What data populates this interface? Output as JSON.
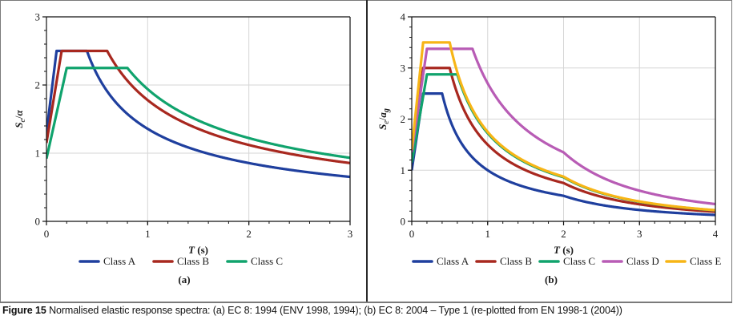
{
  "caption": {
    "label": "Figure 15",
    "text": "Normalised elastic response spectra: (a) EC 8: 1994 (ENV 1998, 1994); (b) EC 8: 2004 – Type 1 (re-plotted from EN 1998-1 (2004))"
  },
  "chart_data": [
    {
      "id": "a",
      "type": "line",
      "panel_label": "(a)",
      "title": "",
      "xlabel_italic": "T",
      "xlabel_rest": " (s)",
      "ylabel_main": "S",
      "ylabel_sub": "e",
      "ylabel_slash": "/",
      "ylabel_denom": "α",
      "ylabel_denom_sub": "",
      "xlim": [
        0,
        3
      ],
      "ylim": [
        0,
        3
      ],
      "xticks": [
        0,
        1,
        2,
        3
      ],
      "yticks": [
        0,
        1,
        2,
        3
      ],
      "x_minor_step": 0.2,
      "y_minor_step": 0.2,
      "grid": true,
      "legend_position": "bottom",
      "series": [
        {
          "name": "Class A",
          "color": "#1f3f9e",
          "spectrum": {
            "S0": 1.3,
            "TB": 0.1,
            "TC": 0.4,
            "plateau": 2.5,
            "exp": 0.6667
          }
        },
        {
          "name": "Class B",
          "color": "#a8281f",
          "spectrum": {
            "S0": 1.15,
            "TB": 0.15,
            "TC": 0.6,
            "plateau": 2.5,
            "exp": 0.6667
          }
        },
        {
          "name": "Class C",
          "color": "#10a36d",
          "spectrum": {
            "S0": 0.92,
            "TB": 0.2,
            "TC": 0.8,
            "plateau": 2.25,
            "exp": 0.6667
          }
        }
      ]
    },
    {
      "id": "b",
      "type": "line",
      "panel_label": "(b)",
      "title": "",
      "xlabel_italic": "T",
      "xlabel_rest": " (s)",
      "ylabel_main": "S",
      "ylabel_sub": "e",
      "ylabel_slash": "/",
      "ylabel_denom": "a",
      "ylabel_denom_sub": "g",
      "xlim": [
        0,
        4
      ],
      "ylim": [
        0,
        4
      ],
      "xticks": [
        0,
        1,
        2,
        3,
        4
      ],
      "yticks": [
        0,
        1,
        2,
        3,
        4
      ],
      "x_minor_step": 0.2,
      "y_minor_step": 0.2,
      "grid": true,
      "legend_position": "bottom",
      "series": [
        {
          "name": "Class A",
          "color": "#1f3f9e",
          "spectrum": {
            "S": 1.0,
            "TB": 0.15,
            "TC": 0.4,
            "TD": 2.0
          }
        },
        {
          "name": "Class B",
          "color": "#a8281f",
          "spectrum": {
            "S": 1.2,
            "TB": 0.15,
            "TC": 0.5,
            "TD": 2.0
          }
        },
        {
          "name": "Class C",
          "color": "#10a36d",
          "spectrum": {
            "S": 1.15,
            "TB": 0.2,
            "TC": 0.6,
            "TD": 2.0
          }
        },
        {
          "name": "Class D",
          "color": "#b85cb5",
          "spectrum": {
            "S": 1.35,
            "TB": 0.2,
            "TC": 0.8,
            "TD": 2.0
          }
        },
        {
          "name": "Class E",
          "color": "#f7b516",
          "spectrum": {
            "S": 1.4,
            "TB": 0.15,
            "TC": 0.5,
            "TD": 2.0
          }
        }
      ]
    }
  ]
}
